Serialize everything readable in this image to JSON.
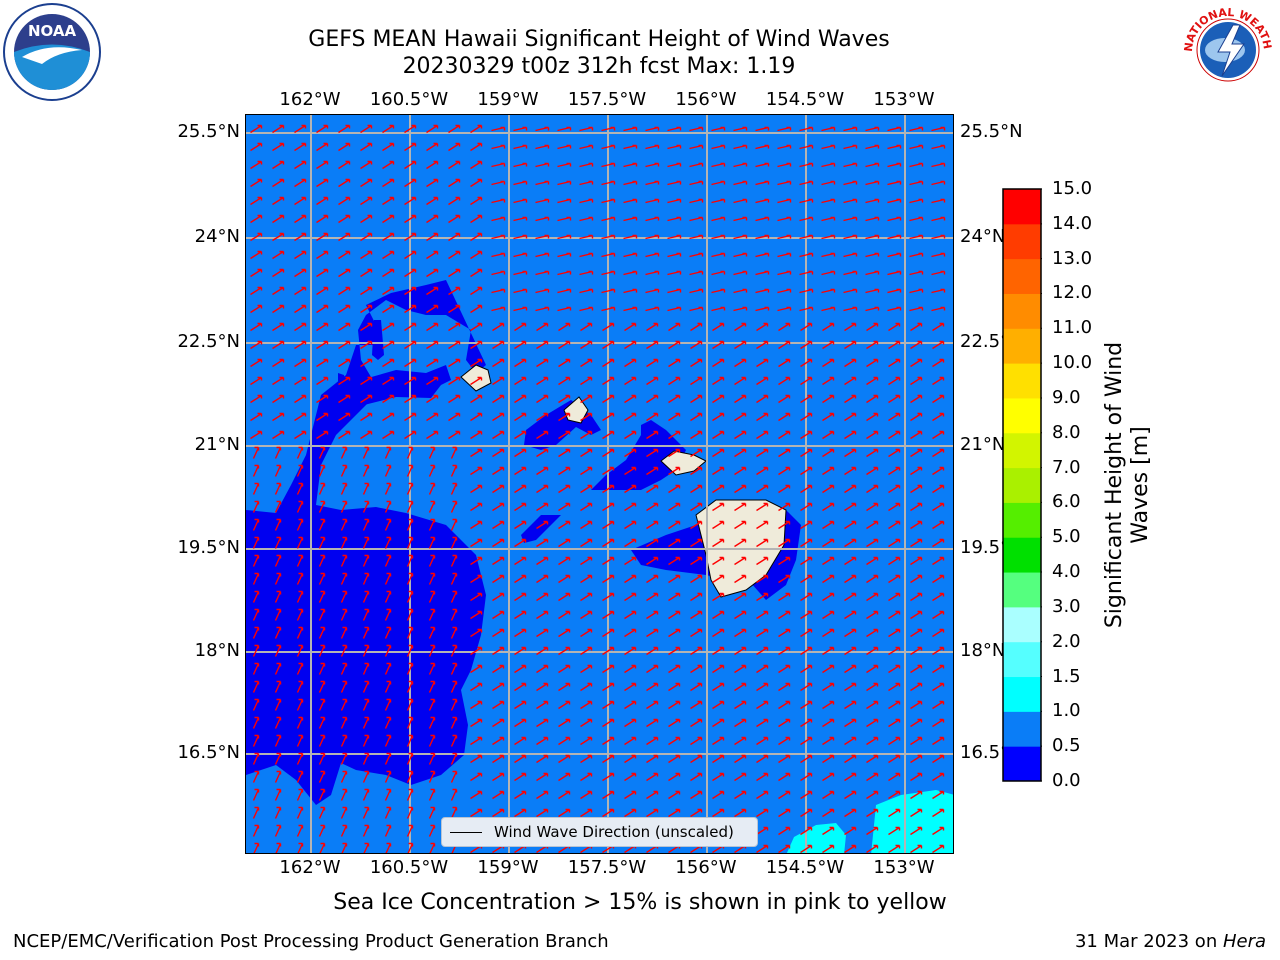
{
  "title": {
    "line1": "GEFS MEAN Hawaii Significant Height of Wind Waves",
    "line2": "20230329 t00z 312h fcst   Max: 1.19"
  },
  "axes": {
    "lon_labels": [
      "162°W",
      "160.5°W",
      "159°W",
      "157.5°W",
      "156°W",
      "154.5°W",
      "153°W"
    ],
    "lat_labels": [
      "25.5°N",
      "24°N",
      "22.5°N",
      "21°N",
      "19.5°N",
      "18°N",
      "16.5°N"
    ]
  },
  "colorbar": {
    "label": "Significant Height of Wind Waves [m]",
    "ticks": [
      "0.0",
      "0.5",
      "1.0",
      "1.5",
      "2.0",
      "3.0",
      "4.0",
      "5.0",
      "6.0",
      "7.0",
      "8.0",
      "9.0",
      "10.0",
      "11.0",
      "12.0",
      "13.0",
      "14.0",
      "15.0"
    ],
    "colors": [
      "#0000ff",
      "#0a7df7",
      "#00ffff",
      "#55ffff",
      "#aaffff",
      "#55ff7f",
      "#00e000",
      "#55ee00",
      "#aaf000",
      "#d2f500",
      "#ffff00",
      "#ffe000",
      "#ffaf00",
      "#ff8c00",
      "#ff6400",
      "#ff3c00",
      "#ff0000"
    ]
  },
  "legend": {
    "label": "Wind Wave Direction (unscaled)"
  },
  "footer": {
    "note": "Sea Ice Concentration > 15% is shown in pink to yellow",
    "left": "NCEP/EMC/Verification Post Processing Product Generation Branch",
    "date": "31 Mar 2023 on ",
    "machine": "Hera"
  },
  "logos": {
    "left": "NOAA",
    "right": "NATIONAL WEATHER SERVICE"
  },
  "map_colors": {
    "ocean": "#0a7df7",
    "low": "#0000f0",
    "land": "#efebda",
    "arrow": "#ff0000",
    "grid": "#b4b4b4"
  }
}
